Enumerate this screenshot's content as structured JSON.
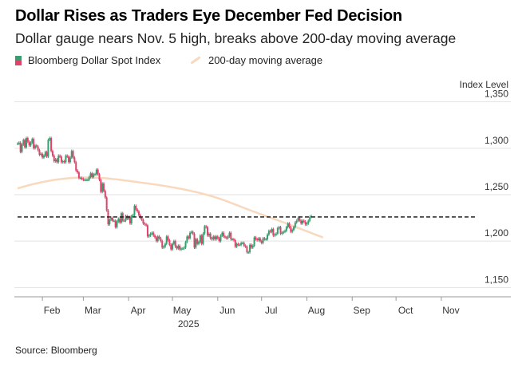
{
  "title": "Dollar Rises as Traders Eye December Fed Decision",
  "subtitle": "Dollar gauge nears Nov. 5 high, breaks above 200-day moving average",
  "legend": {
    "index_label": "Bloomberg Dollar Spot Index",
    "ma_label": "200-day moving average"
  },
  "source": "Source: Bloomberg",
  "colors": {
    "up": "#3a9c6f",
    "down": "#e0426a",
    "moving_average": "#f8d9bd",
    "grid": "#e2e2e2",
    "reference": "#111111"
  },
  "chart_data": {
    "type": "candlestick",
    "title": "Dollar Rises as Traders Eye December Fed Decision",
    "subtitle": "Dollar gauge nears Nov. 5 high, breaks above 200-day moving average",
    "ylabel": "Index Level",
    "year_label": "2025",
    "ylim": [
      1140,
      1360
    ],
    "yticks": [
      1150,
      1200,
      1250,
      1300,
      1350
    ],
    "ytick_labels": [
      "1,150",
      "1,200",
      "1,250",
      "1,300",
      "1,350"
    ],
    "xlim": [
      "2025-01-15",
      "2025-11-30"
    ],
    "xticks": [
      {
        "date": "2025-02-01",
        "label": "Feb"
      },
      {
        "date": "2025-03-01",
        "label": "Mar"
      },
      {
        "date": "2025-04-01",
        "label": "Apr"
      },
      {
        "date": "2025-05-01",
        "label": "May"
      },
      {
        "date": "2025-06-01",
        "label": "Jun"
      },
      {
        "date": "2025-07-01",
        "label": "Jul"
      },
      {
        "date": "2025-08-01",
        "label": "Aug"
      },
      {
        "date": "2025-09-01",
        "label": "Sep"
      },
      {
        "date": "2025-10-01",
        "label": "Oct"
      },
      {
        "date": "2025-11-01",
        "label": "Nov"
      }
    ],
    "grid": true,
    "reference_line": {
      "value": 1226,
      "start": "2025-01-15",
      "end": "2025-11-25",
      "style": "dashed"
    },
    "series": [
      {
        "name": "Bloomberg Dollar Spot Index",
        "kind": "candlestick",
        "start": "2025-01-15",
        "close": [
          1305,
          1306,
          1296,
          1304,
          1309,
          1301,
          1311,
          1307,
          1303,
          1306,
          1310,
          1300,
          1303,
          1302,
          1298,
          1293,
          1294,
          1290,
          1292,
          1296,
          1291,
          1309,
          1311,
          1297,
          1292,
          1286,
          1288,
          1285,
          1292,
          1291,
          1285,
          1286,
          1285,
          1292,
          1291,
          1285,
          1290,
          1297,
          1290,
          1285,
          1276,
          1274,
          1268,
          1268,
          1267,
          1266,
          1266,
          1266,
          1266,
          1269,
          1273,
          1269,
          1272,
          1272,
          1277,
          1272,
          1266,
          1253,
          1262,
          1254,
          1247,
          1233,
          1218,
          1223,
          1225,
          1222,
          1222,
          1215,
          1221,
          1224,
          1220,
          1230,
          1222,
          1222,
          1227,
          1224,
          1226,
          1219,
          1227,
          1228,
          1238,
          1234,
          1232,
          1228,
          1225,
          1223,
          1219,
          1218,
          1217,
          1205,
          1206,
          1208,
          1209,
          1206,
          1204,
          1200,
          1205,
          1203,
          1200,
          1193,
          1194,
          1197,
          1205,
          1201,
          1196,
          1191,
          1197,
          1200,
          1194,
          1192,
          1195,
          1191,
          1192,
          1192,
          1193,
          1199,
          1205,
          1203,
          1209,
          1210,
          1208,
          1193,
          1202,
          1197,
          1199,
          1206,
          1197,
          1208,
          1216,
          1215,
          1206,
          1208,
          1203,
          1202,
          1205,
          1202,
          1205,
          1203,
          1200,
          1206,
          1209,
          1205,
          1204,
          1203,
          1205,
          1209,
          1202,
          1202,
          1201,
          1194,
          1197,
          1196,
          1196,
          1198,
          1198,
          1195,
          1194,
          1188,
          1188,
          1196,
          1193,
          1195,
          1204,
          1202,
          1201,
          1203,
          1200,
          1198,
          1203,
          1202,
          1202,
          1207,
          1211,
          1210,
          1213,
          1206,
          1207,
          1208,
          1214,
          1215,
          1208,
          1209,
          1210,
          1211,
          1215,
          1219,
          1215,
          1210,
          1212,
          1215,
          1220,
          1222,
          1225,
          1222,
          1219,
          1222,
          1221,
          1218,
          1219,
          1222,
          1226,
          1227
        ]
      },
      {
        "name": "200-day moving average",
        "kind": "line",
        "start": "2025-01-15",
        "values": [
          1257.0,
          1257.2,
          1257.6,
          1258.1,
          1258.6,
          1259.0,
          1259.4,
          1259.9,
          1260.3,
          1260.7,
          1261.1,
          1261.5,
          1261.8,
          1262.2,
          1262.6,
          1262.9,
          1263.3,
          1263.6,
          1263.9,
          1264.2,
          1264.5,
          1264.8,
          1265.1,
          1265.4,
          1265.6,
          1265.9,
          1266.1,
          1266.3,
          1266.5,
          1266.7,
          1266.9,
          1267.1,
          1267.3,
          1267.4,
          1267.6,
          1267.7,
          1267.8,
          1267.9,
          1268.0,
          1268.1,
          1268.2,
          1268.3,
          1268.3,
          1268.4,
          1268.4,
          1268.5,
          1268.5,
          1268.5,
          1268.5,
          1268.5,
          1268.5,
          1268.4,
          1268.4,
          1268.3,
          1268.3,
          1268.2,
          1268.1,
          1268.0,
          1267.9,
          1267.8,
          1267.7,
          1267.6,
          1267.4,
          1267.3,
          1267.1,
          1266.9,
          1266.8,
          1266.6,
          1266.4,
          1266.2,
          1266.0,
          1265.8,
          1265.6,
          1265.4,
          1265.2,
          1265.0,
          1264.8,
          1264.6,
          1264.4,
          1264.2,
          1264.0,
          1263.8,
          1263.6,
          1263.3,
          1263.1,
          1262.9,
          1262.7,
          1262.5,
          1262.3,
          1262.1,
          1261.9,
          1261.6,
          1261.4,
          1261.2,
          1261.0,
          1260.7,
          1260.5,
          1260.3,
          1260.0,
          1259.8,
          1259.5,
          1259.3,
          1259.0,
          1258.8,
          1258.5,
          1258.2,
          1257.9,
          1257.7,
          1257.4,
          1257.1,
          1256.8,
          1256.5,
          1256.2,
          1255.9,
          1255.6,
          1255.3,
          1255.0,
          1254.6,
          1254.3,
          1253.9,
          1253.6,
          1253.2,
          1252.9,
          1252.5,
          1252.1,
          1251.7,
          1251.3,
          1250.9,
          1250.5,
          1250.1,
          1249.6,
          1249.2,
          1248.7,
          1248.3,
          1247.8,
          1247.3,
          1246.8,
          1246.3,
          1245.8,
          1245.3,
          1244.7,
          1244.2,
          1243.6,
          1243.0,
          1242.4,
          1241.8,
          1241.2,
          1240.6,
          1240.0,
          1239.4,
          1238.8,
          1238.2,
          1237.6,
          1236.9,
          1236.3,
          1235.7,
          1235.1,
          1234.5,
          1233.9,
          1233.3,
          1232.7,
          1232.1,
          1231.5,
          1231.0,
          1230.4,
          1229.8,
          1229.2,
          1228.7,
          1228.1,
          1227.5,
          1227.0,
          1226.4,
          1225.8,
          1225.3,
          1224.7,
          1224.2,
          1223.6,
          1223.0,
          1222.5,
          1221.9,
          1221.3,
          1220.7,
          1220.2,
          1219.6,
          1219.0,
          1218.4,
          1217.8,
          1217.2,
          1216.6,
          1216.0,
          1215.4,
          1214.8,
          1214.2,
          1213.6,
          1213.0,
          1212.4,
          1211.8,
          1211.2,
          1210.6,
          1210.0,
          1209.4,
          1208.8,
          1208.1,
          1207.5,
          1206.9,
          1206.3,
          1205.7,
          1205.1,
          1204.5,
          1203.8
        ]
      }
    ]
  }
}
